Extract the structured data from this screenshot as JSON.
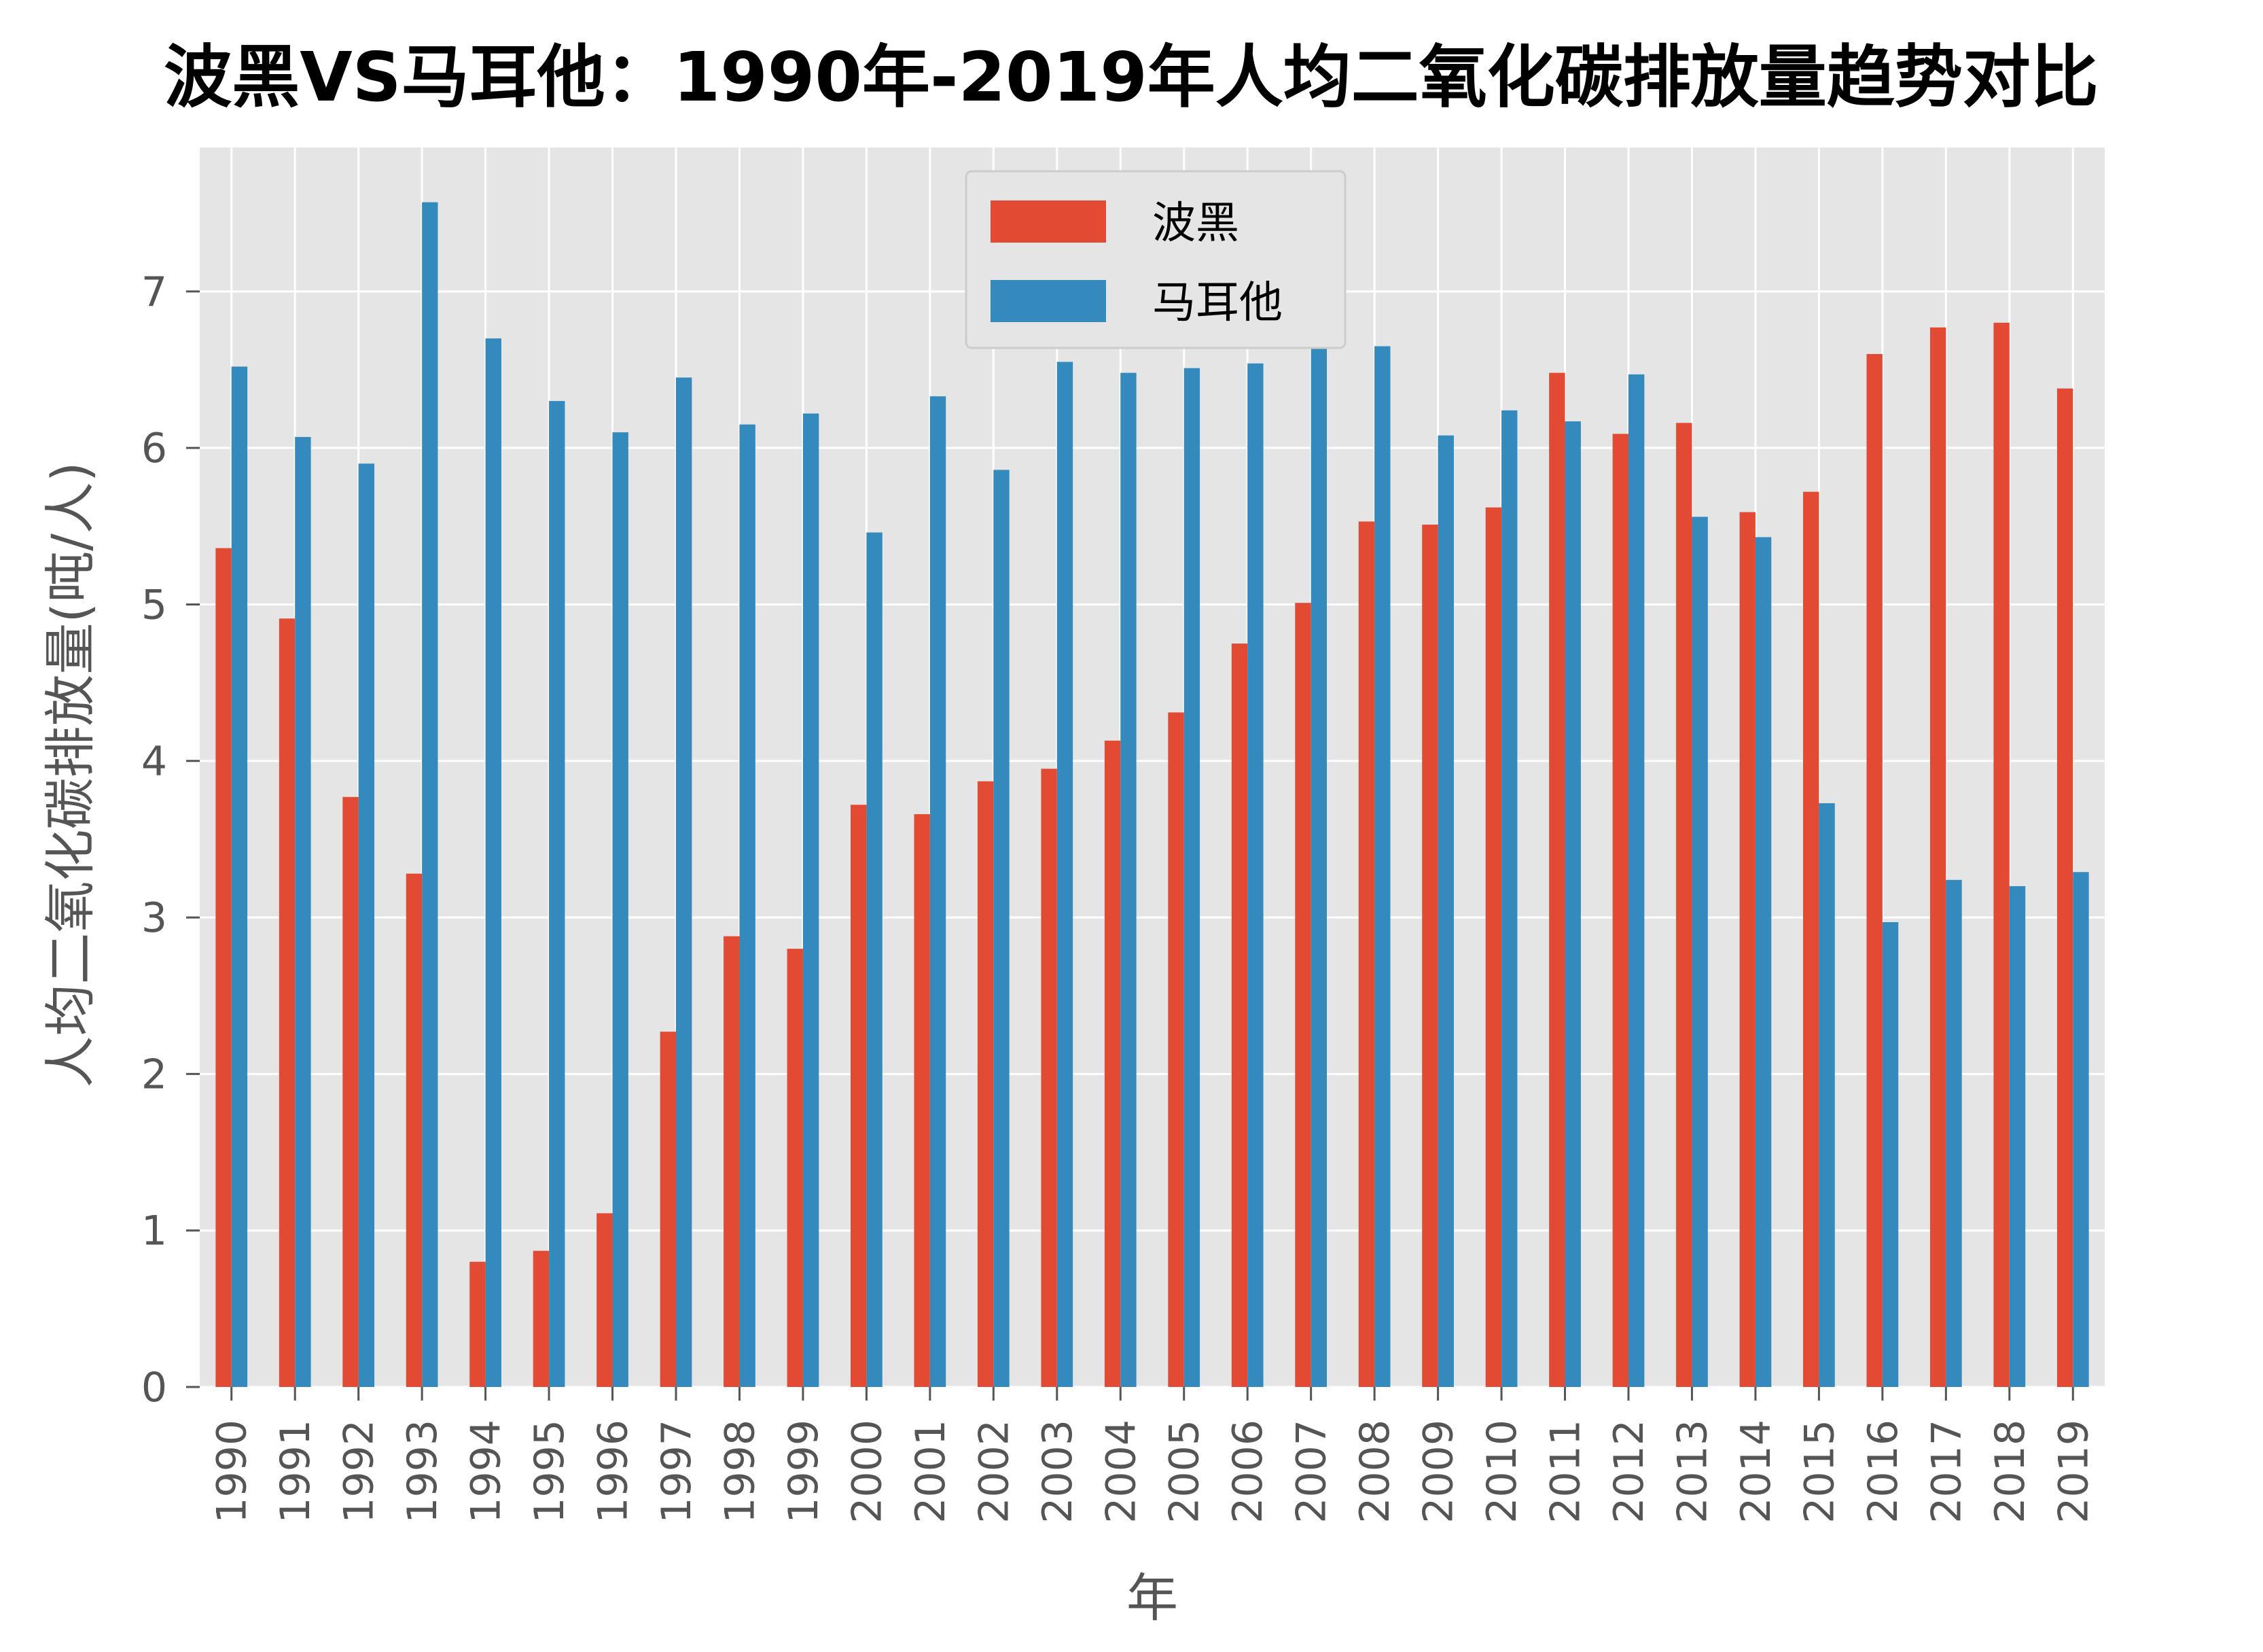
{
  "chart_data": {
    "type": "bar",
    "title": "波黑VS马耳他：1990年-2019年人均二氧化碳排放量趋势对比",
    "xlabel": "年",
    "ylabel": "人均二氧化碳排放量(吨/人)",
    "ylim": [
      0,
      7.92
    ],
    "yticks": [
      0,
      1,
      2,
      3,
      4,
      5,
      6,
      7
    ],
    "grid": true,
    "legend_position": "top-center",
    "categories": [
      "1990",
      "1991",
      "1992",
      "1993",
      "1994",
      "1995",
      "1996",
      "1997",
      "1998",
      "1999",
      "2000",
      "2001",
      "2002",
      "2003",
      "2004",
      "2005",
      "2006",
      "2007",
      "2008",
      "2009",
      "2010",
      "2011",
      "2012",
      "2013",
      "2014",
      "2015",
      "2016",
      "2017",
      "2018",
      "2019"
    ],
    "series": [
      {
        "name": "波黑",
        "color": "#E24A33",
        "values": [
          5.36,
          4.91,
          3.77,
          3.28,
          0.8,
          0.87,
          1.11,
          2.27,
          2.88,
          2.8,
          3.72,
          3.66,
          3.87,
          3.95,
          4.13,
          4.31,
          4.75,
          5.01,
          5.53,
          5.51,
          5.62,
          6.48,
          6.09,
          6.16,
          5.59,
          5.72,
          6.6,
          6.77,
          6.8,
          6.38
        ]
      },
      {
        "name": "马耳他",
        "color": "#348ABD",
        "values": [
          6.52,
          6.07,
          5.9,
          7.57,
          6.7,
          6.3,
          6.1,
          6.45,
          6.15,
          6.22,
          5.46,
          6.33,
          5.86,
          6.55,
          6.48,
          6.51,
          6.54,
          6.69,
          6.65,
          6.08,
          6.24,
          6.17,
          6.47,
          5.56,
          5.43,
          3.73,
          2.97,
          3.24,
          3.2,
          3.29
        ]
      }
    ]
  }
}
